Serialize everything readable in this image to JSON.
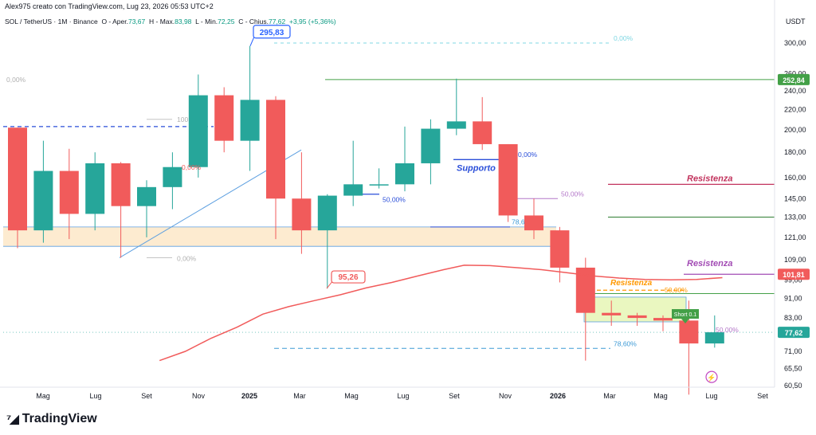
{
  "header": {
    "created_by": "Alex975 creato con TradingView.com, Lug 23, 2026 05:53 UTC+2",
    "symbol": "SOL / TetherUS · 1M · Binance",
    "o_label": "O - Aper.",
    "o_value": "73,67",
    "h_label": "H - Max.",
    "h_value": "83,98",
    "l_label": "L - Min.",
    "l_value": "72,25",
    "c_label": "C - Chius.",
    "c_value": "77,62",
    "change": "+3,95 (+5,36%)"
  },
  "unit": "USDT",
  "brand": "TradingView",
  "colors": {
    "up": "#26a69a",
    "down": "#f15b5b",
    "ema": "#f15b5b",
    "blue": "#2962ff",
    "resist1": "#c2335d",
    "resist2": "#a24bb4",
    "resist3": "#ff9800",
    "green": "#43a047"
  },
  "chart_data": {
    "type": "candlestick",
    "y_scale": "log",
    "ylim": [
      58,
      315
    ],
    "y_ticks": [
      "300,00",
      "260,00",
      "240,00",
      "220,00",
      "200,00",
      "180,00",
      "160,00",
      "145,00",
      "133,00",
      "121,00",
      "109,00",
      "99,00",
      "91,00",
      "83,00",
      "71,00",
      "65,50",
      "60,50"
    ],
    "x_ticks": [
      "Mag",
      "Lug",
      "Set",
      "Nov",
      "2025",
      "Mar",
      "Mag",
      "Lug",
      "Set",
      "Nov",
      "2026",
      "Mar",
      "Mag",
      "Lug",
      "Set"
    ],
    "price_labels": [
      {
        "text": "252,84",
        "value": 252.84,
        "color": "#43a047"
      },
      {
        "text": "101,81",
        "value": 101.81,
        "color": "#f15b5b"
      },
      {
        "text": "77,62",
        "value": 77.62,
        "color": "#26a69a"
      }
    ],
    "candles": [
      {
        "o": 202,
        "h": 202,
        "l": 115,
        "c": 125
      },
      {
        "o": 125,
        "h": 190,
        "l": 118,
        "c": 165
      },
      {
        "o": 165,
        "h": 183,
        "l": 120,
        "c": 135
      },
      {
        "o": 135,
        "h": 180,
        "l": 125,
        "c": 171
      },
      {
        "o": 171,
        "h": 172,
        "l": 110,
        "c": 140
      },
      {
        "o": 140,
        "h": 158,
        "l": 121,
        "c": 153
      },
      {
        "o": 153,
        "h": 180,
        "l": 138,
        "c": 168
      },
      {
        "o": 168,
        "h": 259,
        "l": 160,
        "c": 235
      },
      {
        "o": 235,
        "h": 244,
        "l": 180,
        "c": 190
      },
      {
        "o": 190,
        "h": 295.83,
        "l": 165,
        "c": 230
      },
      {
        "o": 230,
        "h": 234,
        "l": 120,
        "c": 145
      },
      {
        "o": 145,
        "h": 180,
        "l": 112,
        "c": 125
      },
      {
        "o": 125,
        "h": 148,
        "l": 95.26,
        "c": 147
      },
      {
        "o": 147,
        "h": 190,
        "l": 140,
        "c": 155
      },
      {
        "o": 155,
        "h": 167,
        "l": 152,
        "c": 155
      },
      {
        "o": 155,
        "h": 203,
        "l": 150,
        "c": 171
      },
      {
        "o": 171,
        "h": 210,
        "l": 155,
        "c": 201
      },
      {
        "o": 201,
        "h": 254,
        "l": 195,
        "c": 208
      },
      {
        "o": 208,
        "h": 233,
        "l": 182,
        "c": 187
      },
      {
        "o": 187,
        "h": 187,
        "l": 130,
        "c": 134
      },
      {
        "o": 134,
        "h": 145,
        "l": 120,
        "c": 125
      },
      {
        "o": 125,
        "h": 127,
        "l": 98,
        "c": 105
      },
      {
        "o": 105,
        "h": 110,
        "l": 68,
        "c": 85
      },
      {
        "o": 85,
        "h": 90,
        "l": 80,
        "c": 84
      },
      {
        "o": 84,
        "h": 85,
        "l": 80,
        "c": 83
      },
      {
        "o": 83,
        "h": 84,
        "l": 78,
        "c": 82
      },
      {
        "o": 82,
        "h": 90,
        "l": 58,
        "c": 73.67
      },
      {
        "o": 73.67,
        "h": 83.98,
        "l": 72.25,
        "c": 77.62
      }
    ],
    "candle_x_start": 22,
    "candle_spacing": 32.4,
    "ema": [
      {
        "i": 5.5,
        "v": 68
      },
      {
        "i": 6.5,
        "v": 71
      },
      {
        "i": 7.5,
        "v": 75.5
      },
      {
        "i": 8.5,
        "v": 79.5
      },
      {
        "i": 9.5,
        "v": 84.5
      },
      {
        "i": 10.5,
        "v": 87.5
      },
      {
        "i": 11.5,
        "v": 90
      },
      {
        "i": 12.5,
        "v": 92.5
      },
      {
        "i": 13.5,
        "v": 95.5
      },
      {
        "i": 14.5,
        "v": 98
      },
      {
        "i": 15.5,
        "v": 101
      },
      {
        "i": 16.5,
        "v": 104
      },
      {
        "i": 17.3,
        "v": 106.2
      },
      {
        "i": 18.3,
        "v": 106
      },
      {
        "i": 19.3,
        "v": 105
      },
      {
        "i": 20.3,
        "v": 104
      },
      {
        "i": 21.3,
        "v": 102.5
      },
      {
        "i": 22.3,
        "v": 101
      },
      {
        "i": 23.3,
        "v": 100
      },
      {
        "i": 24.3,
        "v": 99.4
      },
      {
        "i": 25.3,
        "v": 99.2
      },
      {
        "i": 26.3,
        "v": 99.4
      },
      {
        "i": 27.3,
        "v": 100.2
      }
    ],
    "annotations": {
      "peak": "295,83",
      "low": "95,26",
      "resistenza": "Resistenza",
      "supporto": "Supporto",
      "pct_0": "0,00%",
      "pct_50": "50,00%",
      "pct_786": "78,60%",
      "pct_78_short": "78,6",
      "pct_100": "100",
      "pct_0_short": "0,00%",
      "target_tag": "Short 0.1",
      "lightning": "⚡"
    }
  }
}
